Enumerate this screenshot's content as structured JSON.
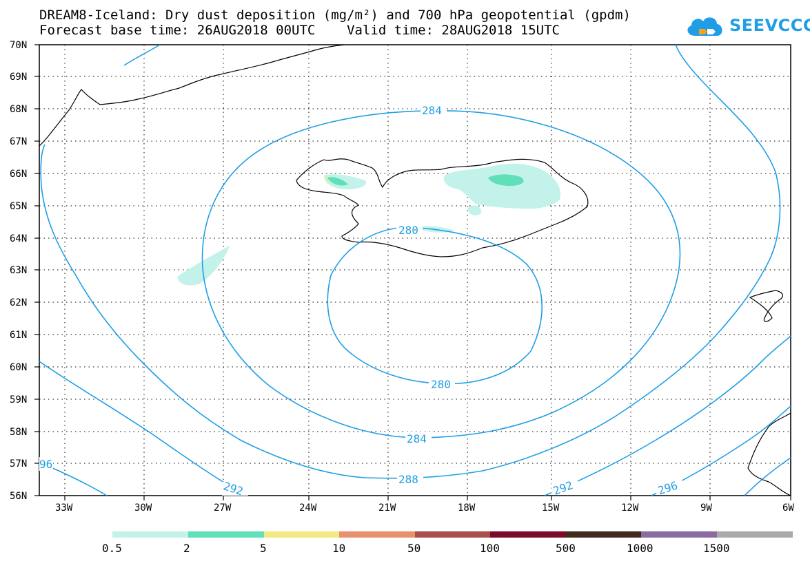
{
  "title": {
    "line1": "DREAM8-Iceland: Dry dust deposition (mg/m²) and 700 hPa geopotential (gpdm)",
    "line2": "Forecast base time: 26AUG2018 00UTC    Valid time: 28AUG2018 15UTC"
  },
  "logo": {
    "text": "SEEVCCC",
    "icon": "cloud-icon",
    "color": "#1f9ee6"
  },
  "map": {
    "lat_labels": [
      "70N",
      "69N",
      "68N",
      "67N",
      "66N",
      "65N",
      "64N",
      "63N",
      "62N",
      "61N",
      "60N",
      "59N",
      "58N",
      "57N",
      "56N"
    ],
    "lon_labels": [
      "33W",
      "30W",
      "27W",
      "24W",
      "21W",
      "18W",
      "15W",
      "12W",
      "9W",
      "6W"
    ],
    "contour_color": "#1f9ee6",
    "contour_labels": [
      "284",
      "280",
      "280",
      "284",
      "288",
      "292",
      "292",
      "296",
      "96"
    ],
    "land_outline_color": "#000000",
    "gridlines": "dotted"
  },
  "colorbar": {
    "labels": [
      "0.5",
      "2",
      "5",
      "10",
      "50",
      "100",
      "500",
      "1000",
      "1500"
    ],
    "colors": [
      "#c3f2ea",
      "#5fe0b8",
      "#f2e982",
      "#e8916e",
      "#a84f4b",
      "#7b0a2a",
      "#3f2a1c",
      "#8a6ca0",
      "#aaaaaa"
    ]
  }
}
